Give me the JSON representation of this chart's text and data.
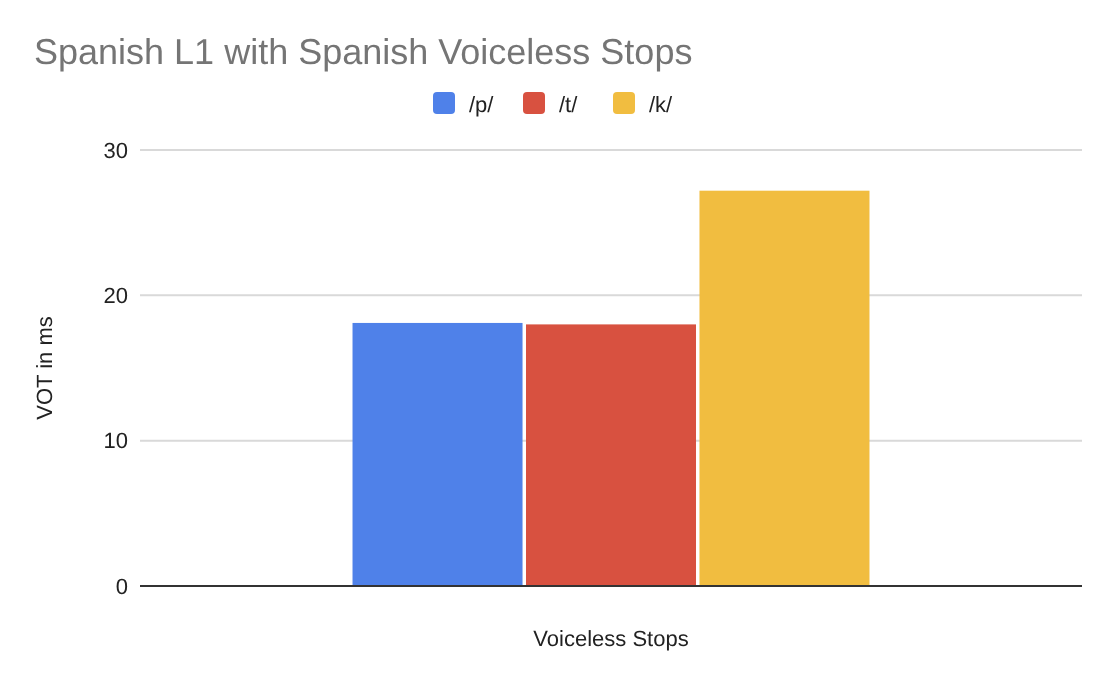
{
  "chart_data": {
    "type": "bar",
    "title": "Spanish L1 with Spanish Voiceless Stops",
    "xlabel": "Voiceless Stops",
    "ylabel": "VOT in ms",
    "categories": [
      null
    ],
    "series": [
      {
        "name": "/p/",
        "color": "#4f81e9",
        "values": [
          18.1
        ]
      },
      {
        "name": "/t/",
        "color": "#d85140",
        "values": [
          18.0
        ]
      },
      {
        "name": "/k/",
        "color": "#f1bd40",
        "values": [
          27.2
        ]
      }
    ],
    "ylim": [
      0,
      30
    ],
    "yticks": [
      0,
      10,
      20,
      30
    ],
    "grid": "y",
    "legend": "top"
  }
}
